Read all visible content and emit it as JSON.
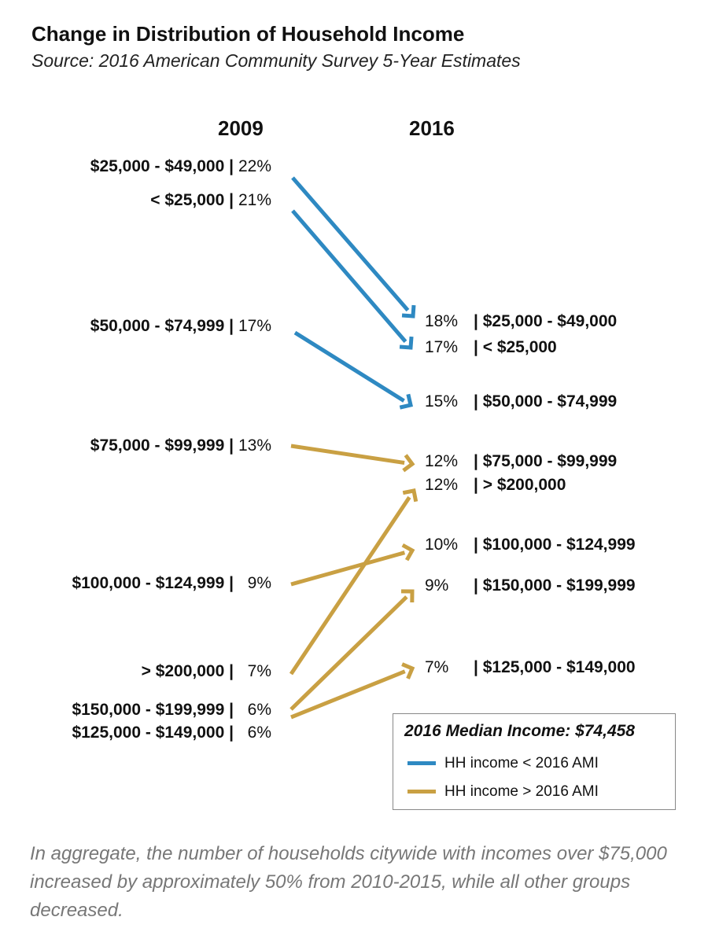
{
  "chart_data": {
    "type": "slope",
    "title": "Change in Distribution of Household Income",
    "subtitle": "Source: 2016 American Community Survey 5-Year Estimates",
    "columns": [
      "2009",
      "2016"
    ],
    "series": [
      {
        "name": "$25,000 - $49,000",
        "v2009": "22%",
        "v2016": "18%",
        "group": "below"
      },
      {
        "name": "< $25,000",
        "v2009": "21%",
        "v2016": "17%",
        "group": "below"
      },
      {
        "name": "$50,000 - $74,999",
        "v2009": "17%",
        "v2016": "15%",
        "group": "below"
      },
      {
        "name": "$75,000 - $99,999",
        "v2009": "13%",
        "v2016": "12%",
        "group": "above"
      },
      {
        "name": "$100,000 - $124,999",
        "v2009": "9%",
        "v2016": "10%",
        "group": "above"
      },
      {
        "name": "> $200,000",
        "v2009": "7%",
        "v2016": "12%",
        "group": "above"
      },
      {
        "name": "$150,000 - $199,999",
        "v2009": "6%",
        "v2016": "9%",
        "group": "above"
      },
      {
        "name": "$125,000 - $149,000",
        "v2009": "6%",
        "v2016": "7%",
        "group": "above"
      }
    ],
    "right_order": [
      0,
      1,
      2,
      3,
      5,
      4,
      6,
      7
    ],
    "legend": {
      "title": "2016 Median Income: $74,458",
      "items": [
        {
          "label": "HH income < 2016 AMI",
          "color": "#2e89c2"
        },
        {
          "label": "HH income > 2016 AMI",
          "color": "#c9a043"
        }
      ]
    },
    "colors": {
      "below": "#2e89c2",
      "above": "#c9a043"
    }
  },
  "footer": "In aggregate, the number of households citywide with incomes over $75,000 increased by approximately 50%  from 2010-2015, while all other groups decreased."
}
